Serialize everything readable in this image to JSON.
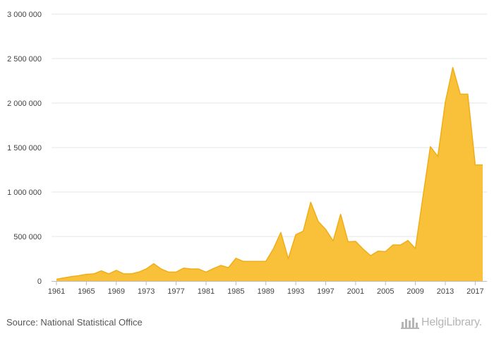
{
  "source": "Source: National Statistical Office",
  "logo": {
    "name": "HelgiLibrary.",
    "icon": "helgi-bars-icon"
  },
  "colors": {
    "area_fill": "#f9c03a",
    "area_line": "#efae16",
    "grid": "#e6e6e6",
    "axis": "#bbbbbb",
    "text": "#444444"
  },
  "chart_data": {
    "type": "area",
    "title": "",
    "xlabel": "",
    "ylabel": "",
    "grid": true,
    "legend": "none",
    "ylim": [
      0,
      3000000
    ],
    "xlim": [
      1961,
      2018
    ],
    "yticks": [
      0,
      500000,
      1000000,
      1500000,
      2000000,
      2500000,
      3000000
    ],
    "ytick_labels": [
      "0",
      "500 000",
      "1 000 000",
      "1 500 000",
      "2 000 000",
      "2 500 000",
      "3 000 000"
    ],
    "xticks": [
      1961,
      1965,
      1969,
      1973,
      1977,
      1981,
      1985,
      1989,
      1993,
      1997,
      2001,
      2005,
      2009,
      2013,
      2017
    ],
    "x": [
      1961,
      1962,
      1963,
      1964,
      1965,
      1966,
      1967,
      1968,
      1969,
      1970,
      1971,
      1972,
      1973,
      1974,
      1975,
      1976,
      1977,
      1978,
      1979,
      1980,
      1981,
      1982,
      1983,
      1984,
      1985,
      1986,
      1987,
      1988,
      1989,
      1990,
      1991,
      1992,
      1993,
      1994,
      1995,
      1996,
      1997,
      1998,
      1999,
      2000,
      2001,
      2002,
      2003,
      2004,
      2005,
      2006,
      2007,
      2008,
      2009,
      2010,
      2011,
      2012,
      2013,
      2014,
      2015,
      2016,
      2017,
      2018
    ],
    "series": [
      {
        "values": [
          20000,
          35000,
          50000,
          60000,
          75000,
          80000,
          115000,
          80000,
          120000,
          80000,
          80000,
          100000,
          135000,
          195000,
          135000,
          100000,
          100000,
          145000,
          135000,
          135000,
          100000,
          140000,
          175000,
          150000,
          255000,
          220000,
          220000,
          220000,
          220000,
          360000,
          545000,
          250000,
          520000,
          560000,
          885000,
          670000,
          580000,
          450000,
          750000,
          440000,
          445000,
          360000,
          285000,
          335000,
          330000,
          405000,
          405000,
          455000,
          365000,
          940000,
          1510000,
          1400000,
          2010000,
          2400000,
          2100000,
          2100000,
          1305000,
          1305000
        ]
      }
    ]
  }
}
